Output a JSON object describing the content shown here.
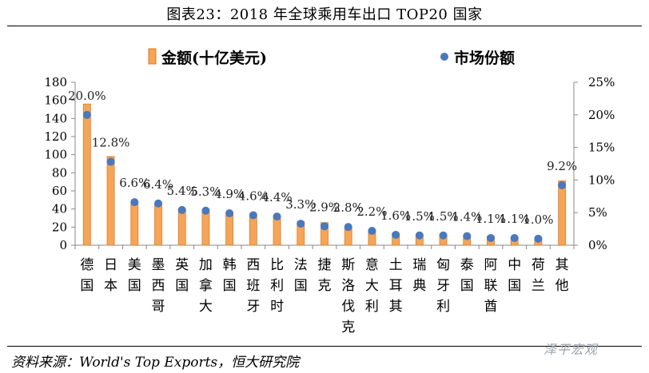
{
  "page": {
    "title": "图表23：2018 年全球乘用车出口 TOP20 国家",
    "source": "资料来源：World's Top Exports，恒大研究院",
    "watermark": "泽平宏观"
  },
  "colors": {
    "bar": "#f4a55a",
    "bar_edge": "#e07a1e",
    "dot": "#4a78bd",
    "axis": "#888888"
  },
  "chart_data": {
    "type": "bar",
    "categories": [
      "德国",
      "日本",
      "美国",
      "墨西哥",
      "英国",
      "加拿大",
      "韩国",
      "西班牙",
      "比利时",
      "法国",
      "捷克",
      "斯洛伐克",
      "意大利",
      "土耳其",
      "瑞典",
      "匈牙利",
      "泰国",
      "阿联酋",
      "中国",
      "荷兰",
      "其他"
    ],
    "series": [
      {
        "name": "金额(十亿美元)",
        "type": "bar",
        "axis": "left",
        "values": [
          156,
          98,
          47,
          45,
          40,
          38,
          35,
          33,
          31,
          26,
          25,
          21,
          17,
          13,
          12,
          12,
          11,
          10,
          9,
          8,
          71
        ]
      },
      {
        "name": "市场份额",
        "type": "scatter",
        "axis": "right",
        "values": [
          20.0,
          12.8,
          6.6,
          6.4,
          5.4,
          5.3,
          4.9,
          4.6,
          4.4,
          3.3,
          2.9,
          2.8,
          2.2,
          1.6,
          1.5,
          1.5,
          1.4,
          1.1,
          1.1,
          1.0,
          9.2
        ],
        "labels": [
          "20.0%",
          "12.8%",
          "6.6%",
          "6.4%",
          "5.4%",
          "5.3%",
          "4.9%",
          "4.6%",
          "4.4%",
          "3.3%",
          "2.9%",
          "2.8%",
          "2.2%",
          "1.6%",
          "1.5%",
          "1.5%",
          "1.4%",
          "1.1%",
          "1.1%",
          "1.0%",
          "9.2%"
        ]
      }
    ],
    "y_left": {
      "min": 0,
      "max": 180,
      "ticks": [
        "0",
        "20",
        "40",
        "60",
        "80",
        "100",
        "120",
        "140",
        "160",
        "180"
      ]
    },
    "y_right": {
      "min": 0,
      "max": 25,
      "ticks": [
        "0%",
        "5%",
        "10%",
        "15%",
        "20%",
        "25%"
      ]
    },
    "grid": false,
    "legend_position": "top"
  }
}
